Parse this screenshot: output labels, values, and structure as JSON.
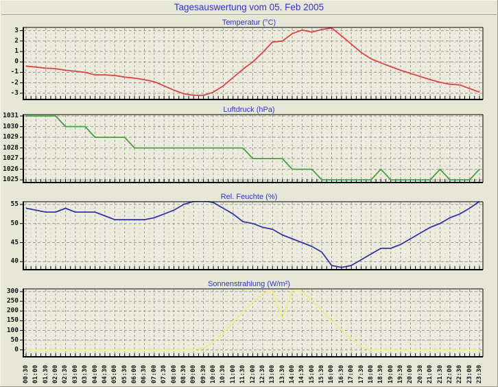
{
  "title": "Tagesauswertung vom 05. Feb 2005",
  "colors": {
    "page_background": "#e7e7d8",
    "plot_background": "#ecebdd",
    "grid": "#9a9a8e",
    "grid_minor": "#b4b4a6",
    "axis_text": "#111111",
    "title_blue": "#3232c8",
    "temperature_line": "#dc4343",
    "pressure_line": "#44a044",
    "humidity_line": "#3333aa",
    "radiation_line": "#eeee8c"
  },
  "x_labels": [
    "00:30",
    "01:00",
    "01:30",
    "02:00",
    "02:30",
    "03:00",
    "03:30",
    "04:00",
    "04:30",
    "05:00",
    "05:30",
    "06:00",
    "06:30",
    "07:00",
    "07:30",
    "08:00",
    "08:30",
    "09:00",
    "09:30",
    "10:00",
    "10:30",
    "11:00",
    "11:30",
    "12:00",
    "12:30",
    "13:00",
    "13:30",
    "14:00",
    "14:30",
    "15:00",
    "15:30",
    "16:00",
    "16:30",
    "17:00",
    "17:30",
    "18:00",
    "18:30",
    "19:00",
    "19:30",
    "20:00",
    "20:30",
    "21:00",
    "21:30",
    "22:00",
    "22:30",
    "23:00",
    "23:30"
  ],
  "chart_data": [
    {
      "type": "line",
      "title": "Temperatur (°C)",
      "color": "#dc4343",
      "y_ticks": [
        3,
        2,
        1,
        0,
        -1,
        -2,
        -3
      ],
      "ylim": [
        -3.6,
        3.3
      ],
      "grid": true,
      "legend": "none",
      "values": [
        -0.4,
        -0.5,
        -0.6,
        -0.65,
        -0.8,
        -0.9,
        -1.0,
        -1.25,
        -1.25,
        -1.3,
        -1.45,
        -1.55,
        -1.7,
        -1.9,
        -2.3,
        -2.7,
        -3.05,
        -3.2,
        -3.2,
        -2.9,
        -2.3,
        -1.5,
        -0.7,
        0.0,
        0.9,
        1.9,
        2.0,
        2.7,
        3.05,
        2.85,
        3.1,
        3.25,
        2.5,
        1.7,
        0.9,
        0.3,
        -0.1,
        -0.45,
        -0.8,
        -1.1,
        -1.4,
        -1.7,
        -1.95,
        -2.15,
        -2.2,
        -2.55,
        -2.9
      ]
    },
    {
      "type": "line",
      "title": "Luftdruck (hPa)",
      "color": "#44a044",
      "y_ticks": [
        1031,
        1030,
        1029,
        1028,
        1027,
        1026,
        1025
      ],
      "ylim": [
        1024.75,
        1031.13
      ],
      "grid": true,
      "legend": "none",
      "values": [
        1031,
        1031,
        1031,
        1031,
        1030,
        1030,
        1030,
        1029,
        1029,
        1029,
        1029,
        1028,
        1028,
        1028,
        1028,
        1028,
        1028,
        1028,
        1028,
        1028,
        1028,
        1028,
        1028,
        1027,
        1027,
        1027,
        1027,
        1026,
        1026,
        1026,
        1025,
        1025,
        1025,
        1025,
        1025,
        1025,
        1026,
        1025,
        1025,
        1025,
        1025,
        1025,
        1026,
        1025,
        1025,
        1025,
        1026
      ]
    },
    {
      "type": "line",
      "title": "Rel. Feuchte (%)",
      "color": "#3333aa",
      "y_ticks": [
        55,
        50,
        45,
        40
      ],
      "ylim": [
        37.9,
        55.71
      ],
      "grid": true,
      "legend": "none",
      "values": [
        54,
        53.5,
        53,
        53,
        54,
        53,
        53,
        53,
        52,
        51,
        51,
        51,
        51,
        51.5,
        52.5,
        53.5,
        55,
        55.8,
        56,
        55.5,
        54,
        52.5,
        50.5,
        50,
        49,
        48.5,
        47,
        46,
        45,
        44,
        42.5,
        39,
        38.5,
        39,
        40.5,
        42,
        43.5,
        43.5,
        44.5,
        46,
        47.5,
        49,
        50,
        51.5,
        52.5,
        54,
        55.8
      ]
    },
    {
      "type": "line",
      "title": "Sonnenstrahlung (W/m²)",
      "color": "#eeee8c",
      "y_ticks": [
        300,
        250,
        200,
        150,
        100,
        50,
        0
      ],
      "ylim": [
        -36,
        314
      ],
      "grid": true,
      "legend": "none",
      "values": [
        0,
        0,
        0,
        0,
        0,
        0,
        0,
        0,
        0,
        0,
        0,
        0,
        0,
        0,
        0,
        0,
        0,
        2,
        10,
        40,
        85,
        140,
        195,
        245,
        290,
        305,
        160,
        305,
        298,
        252,
        205,
        150,
        102,
        55,
        15,
        0,
        0,
        0,
        0,
        0,
        0,
        0,
        0,
        0,
        0,
        0,
        0
      ]
    }
  ]
}
